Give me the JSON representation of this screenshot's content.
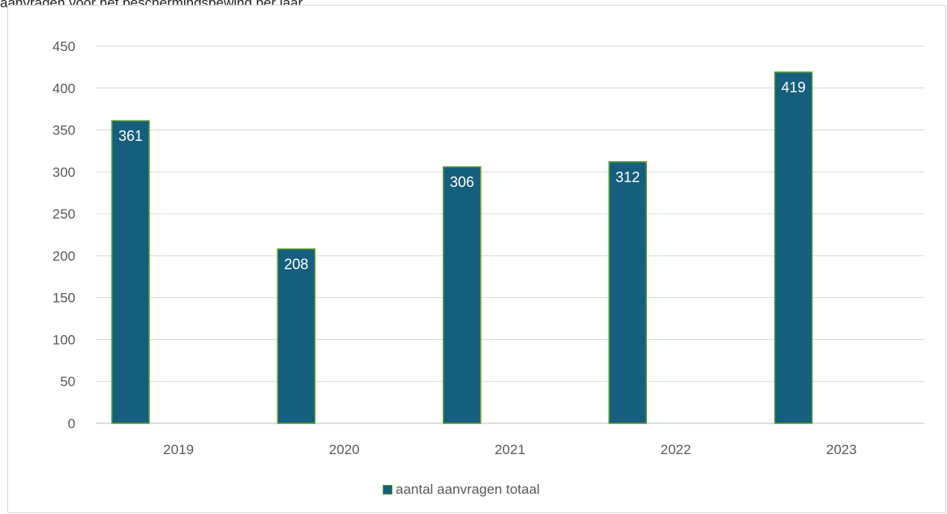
{
  "header_text": "aanvragen voor het beschermingsbewind per jaar",
  "chart_data": {
    "type": "bar",
    "categories": [
      "2019",
      "2020",
      "2021",
      "2022",
      "2023"
    ],
    "series": [
      {
        "name": "aantal aanvragen totaal",
        "values": [
          361,
          208,
          306,
          312,
          419
        ]
      }
    ],
    "yticks": [
      "0",
      "50",
      "100",
      "150",
      "200",
      "250",
      "300",
      "350",
      "400",
      "450"
    ],
    "ylim": [
      0,
      450
    ],
    "grid": true,
    "legend_position": "bottom",
    "bar_color": "#155e7d",
    "bar_border_color": "#5aa02c",
    "data_label_color": "#ffffff"
  }
}
